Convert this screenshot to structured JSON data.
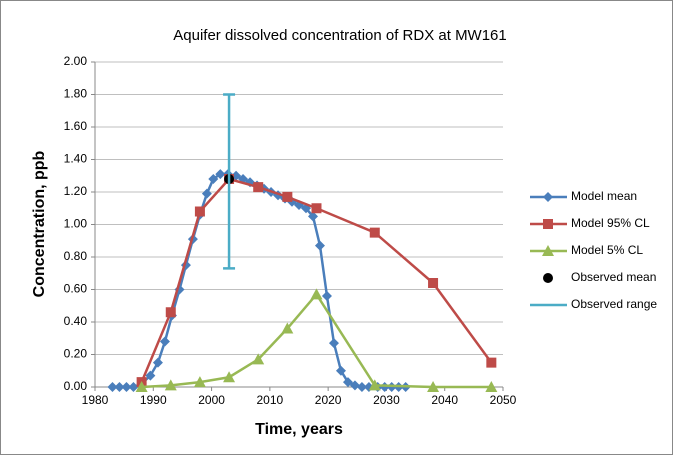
{
  "chart_data": {
    "type": "scatter",
    "title": "Aquifer dissolved concentration of RDX at MW161",
    "xlabel": "Time, years",
    "ylabel": "Concentration, ppb",
    "xlim": [
      1980,
      2050
    ],
    "xticks": [
      1980,
      1990,
      2000,
      2010,
      2020,
      2030,
      2040,
      2050
    ],
    "ylim": [
      0,
      2
    ],
    "yticks": [
      {
        "value": 0,
        "label": "0.00"
      },
      {
        "value": 0.2,
        "label": "0.20"
      },
      {
        "value": 0.4,
        "label": "0.40"
      },
      {
        "value": 0.6,
        "label": "0.60"
      },
      {
        "value": 0.8,
        "label": "0.80"
      },
      {
        "value": 1,
        "label": "1.00"
      },
      {
        "value": 1.2,
        "label": "1.20"
      },
      {
        "value": 1.4,
        "label": "1.40"
      },
      {
        "value": 1.6,
        "label": "1.60"
      },
      {
        "value": 1.8,
        "label": "1.80"
      },
      {
        "value": 2,
        "label": "2.00"
      }
    ],
    "grid": true,
    "legend": "right",
    "series": [
      {
        "name": "Model mean",
        "color": "#4a7ebb",
        "marker": "diamond",
        "line": true,
        "x": [
          1983,
          1984.2,
          1985.4,
          1986.6,
          1988,
          1989.5,
          1990.8,
          1992,
          1993.2,
          1994.5,
          1995.6,
          1996.8,
          1998,
          1999.2,
          2000.3,
          2001.5,
          2002.8,
          2004.2,
          2005.4,
          2006.6,
          2007.8,
          2009,
          2010.2,
          2011.4,
          2012.6,
          2013.8,
          2015,
          2016.2,
          2017.4,
          2018.6,
          2019.8,
          2021,
          2022.2,
          2023.4,
          2024.6,
          2025.8,
          2027,
          2028.5,
          2029.7,
          2030.9,
          2032.1,
          2033.3
        ],
        "values": [
          0,
          0,
          0,
          0,
          0.02,
          0.07,
          0.15,
          0.28,
          0.44,
          0.6,
          0.75,
          0.91,
          1.06,
          1.19,
          1.28,
          1.31,
          1.31,
          1.3,
          1.28,
          1.26,
          1.24,
          1.22,
          1.2,
          1.18,
          1.16,
          1.14,
          1.12,
          1.1,
          1.05,
          0.87,
          0.56,
          0.27,
          0.1,
          0.03,
          0.01,
          0,
          0,
          0,
          0,
          0,
          0,
          0
        ]
      },
      {
        "name": "Model 95% CL",
        "color": "#be4b48",
        "marker": "square",
        "line": true,
        "x": [
          1988,
          1993,
          1998,
          2003,
          2008,
          2013,
          2018,
          2028,
          2038,
          2048
        ],
        "values": [
          0.03,
          0.46,
          1.08,
          1.28,
          1.23,
          1.17,
          1.1,
          0.95,
          0.64,
          0.15
        ]
      },
      {
        "name": "Model 5% CL",
        "color": "#98b954",
        "marker": "triangle",
        "line": true,
        "x": [
          1988,
          1993,
          1998,
          2003,
          2008,
          2013,
          2018,
          2028,
          2038,
          2048
        ],
        "values": [
          0,
          0.01,
          0.03,
          0.06,
          0.17,
          0.36,
          0.57,
          0.01,
          0,
          0
        ]
      },
      {
        "name": "Observed mean",
        "color": "#000000",
        "marker": "circle",
        "line": false,
        "x": [
          2003
        ],
        "values": [
          1.28
        ]
      },
      {
        "name": "Observed range",
        "color": "#4bacc6",
        "marker": "errorbar",
        "line": false,
        "x": [
          2003
        ],
        "low": [
          0.73
        ],
        "high": [
          1.8
        ]
      }
    ]
  }
}
